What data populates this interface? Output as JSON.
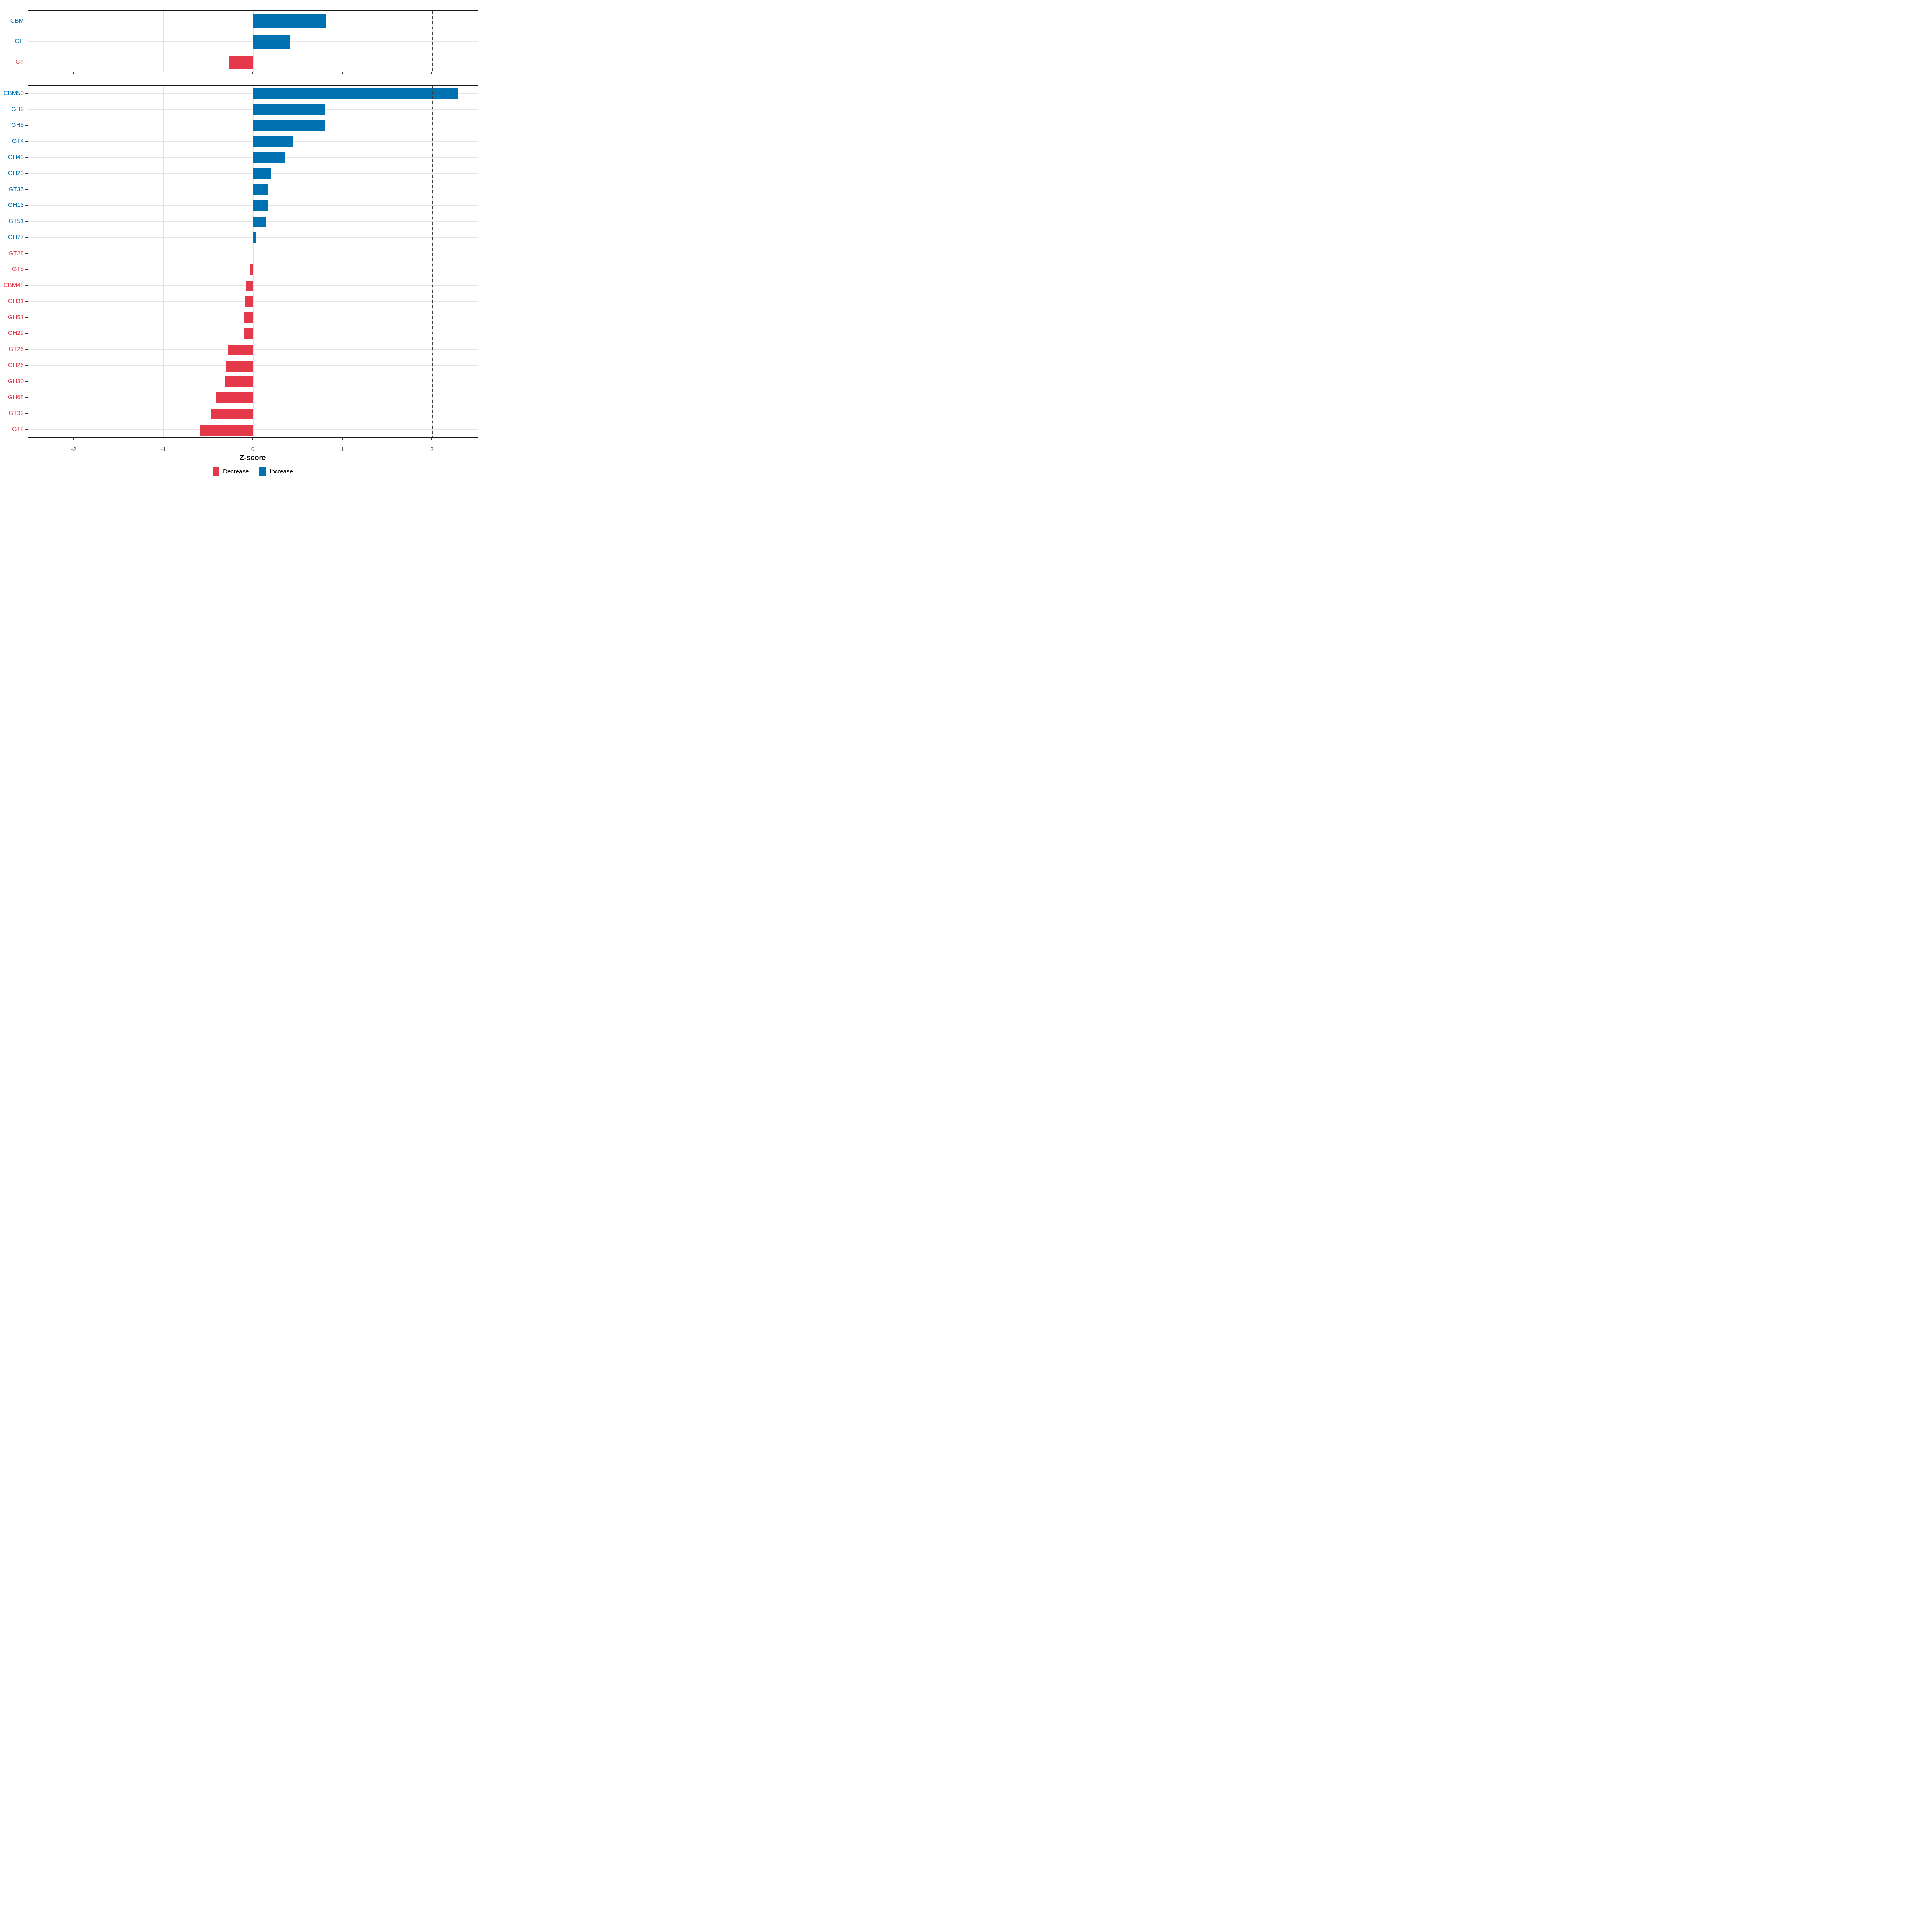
{
  "chart_data": [
    {
      "id": "classes",
      "type": "bar",
      "orientation": "horizontal",
      "title": "",
      "xlabel": "Z-score",
      "xlim": [
        -2.51,
        2.52
      ],
      "x_ticks": [
        -2,
        -1,
        0,
        1,
        2
      ],
      "grid": true,
      "reference_lines": [
        -2,
        2
      ],
      "items": [
        {
          "label": "CBM",
          "value": 0.81,
          "direction": "increase"
        },
        {
          "label": "GH",
          "value": 0.41,
          "direction": "increase"
        },
        {
          "label": "GT",
          "value": -0.27,
          "direction": "decrease"
        }
      ]
    },
    {
      "id": "families",
      "type": "bar",
      "orientation": "horizontal",
      "title": "",
      "xlabel": "Z-score",
      "xlim": [
        -2.51,
        2.52
      ],
      "x_ticks": [
        -2,
        -1,
        0,
        1,
        2
      ],
      "grid": true,
      "reference_lines": [
        -2,
        2
      ],
      "items": [
        {
          "label": "CBM50",
          "value": 2.29,
          "direction": "increase"
        },
        {
          "label": "GH9",
          "value": 0.8,
          "direction": "increase"
        },
        {
          "label": "GH5",
          "value": 0.8,
          "direction": "increase"
        },
        {
          "label": "GT4",
          "value": 0.45,
          "direction": "increase"
        },
        {
          "label": "GH43",
          "value": 0.36,
          "direction": "increase"
        },
        {
          "label": "GH23",
          "value": 0.2,
          "direction": "increase"
        },
        {
          "label": "GT35",
          "value": 0.17,
          "direction": "increase"
        },
        {
          "label": "GH13",
          "value": 0.17,
          "direction": "increase"
        },
        {
          "label": "GT51",
          "value": 0.14,
          "direction": "increase"
        },
        {
          "label": "GH77",
          "value": 0.03,
          "direction": "increase"
        },
        {
          "label": "GT28",
          "value": 0.0,
          "direction": "decrease"
        },
        {
          "label": "GT5",
          "value": -0.04,
          "direction": "decrease"
        },
        {
          "label": "CBM48",
          "value": -0.08,
          "direction": "decrease"
        },
        {
          "label": "GH31",
          "value": -0.09,
          "direction": "decrease"
        },
        {
          "label": "GH51",
          "value": -0.1,
          "direction": "decrease"
        },
        {
          "label": "GH29",
          "value": -0.1,
          "direction": "decrease"
        },
        {
          "label": "GT26",
          "value": -0.28,
          "direction": "decrease"
        },
        {
          "label": "GH26",
          "value": -0.3,
          "direction": "decrease"
        },
        {
          "label": "GH30",
          "value": -0.32,
          "direction": "decrease"
        },
        {
          "label": "GH68",
          "value": -0.42,
          "direction": "decrease"
        },
        {
          "label": "GT39",
          "value": -0.47,
          "direction": "decrease"
        },
        {
          "label": "GT2",
          "value": -0.6,
          "direction": "decrease"
        }
      ]
    }
  ],
  "axis": {
    "title": "Z-score",
    "tick_labels": [
      "-2",
      "-1",
      "0",
      "1",
      "2"
    ],
    "tick_values": [
      -2,
      -1,
      0,
      1,
      2
    ]
  },
  "legend": {
    "items": [
      {
        "label": "Decrease",
        "color_key": "decrease"
      },
      {
        "label": "Increase",
        "color_key": "increase"
      }
    ]
  },
  "colors": {
    "increase": "#0072B2",
    "decrease": "#E5394B",
    "gridline": "#E4E4E4",
    "reference_line": "#3F3F3F",
    "axis_text": "#4D4D4D",
    "panel_border": "#1A1A1A"
  }
}
